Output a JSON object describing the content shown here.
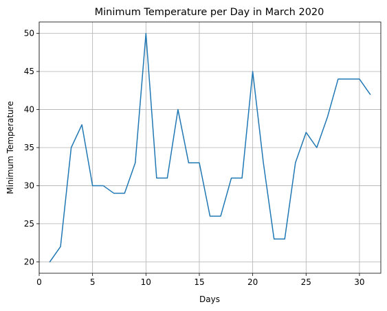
{
  "chart_data": {
    "type": "line",
    "title": "Minimum Temperature per Day in March 2020",
    "xlabel": "Days",
    "ylabel": "Minimum Temperature",
    "xlim": [
      0,
      32
    ],
    "ylim": [
      18.5,
      51.5
    ],
    "xticks": [
      0,
      5,
      10,
      15,
      20,
      25,
      30
    ],
    "yticks": [
      20,
      25,
      30,
      35,
      40,
      45,
      50
    ],
    "grid": true,
    "series": [
      {
        "color": "#1f77b4",
        "x": [
          1,
          2,
          3,
          4,
          5,
          6,
          7,
          8,
          9,
          10,
          11,
          12,
          13,
          14,
          15,
          16,
          17,
          18,
          19,
          20,
          21,
          22,
          23,
          24,
          25,
          26,
          27,
          28,
          29,
          30,
          31
        ],
        "y": [
          20,
          22,
          35,
          38,
          30,
          30,
          29,
          29,
          33,
          50,
          31,
          31,
          40,
          33,
          33,
          26,
          26,
          31,
          31,
          45,
          33,
          23,
          23,
          33,
          37,
          35,
          39,
          44,
          44,
          44,
          42
        ]
      }
    ]
  }
}
